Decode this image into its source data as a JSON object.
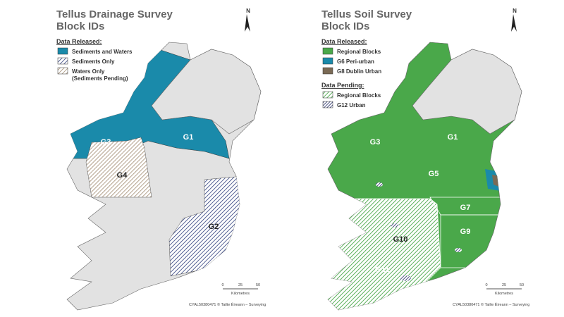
{
  "maps": [
    {
      "title": [
        "Tellus Drainage Survey",
        "Block IDs"
      ],
      "north": "N",
      "legend": [
        {
          "heading": "Data Released:",
          "items": [
            {
              "label": "Sediments and Waters"
            },
            {
              "label": "Sediments Only"
            },
            {
              "label": "Waters Only",
              "note": "(Sediments Pending)"
            }
          ]
        }
      ],
      "blocks": [
        "G3",
        "G1",
        "G4",
        "G2"
      ],
      "scale": {
        "ticks": [
          "0",
          "25",
          "50"
        ],
        "unit": "Kilometres"
      },
      "credit": "CYAL50380471 © Tailte Éireann – Surveying"
    },
    {
      "title": [
        "Tellus Soil Survey",
        "Block IDs"
      ],
      "north": "N",
      "legend": [
        {
          "heading": "Data Released:",
          "items": [
            {
              "label": "Regional Blocks"
            },
            {
              "label": "G6 Peri-urban"
            },
            {
              "label": "G8 Dublin Urban"
            }
          ]
        },
        {
          "heading": "Data Pending:",
          "items": [
            {
              "label": "Regional Blocks"
            },
            {
              "label": "G12 Urban"
            }
          ]
        }
      ],
      "blocks": [
        "G3",
        "G1",
        "G5",
        "G7",
        "G9",
        "G10",
        "G11"
      ],
      "scale": {
        "ticks": [
          "0",
          "25",
          "50"
        ],
        "unit": "Kilometres"
      },
      "credit": "CYAL50380471 © Tailte Éireann – Surveying"
    }
  ]
}
